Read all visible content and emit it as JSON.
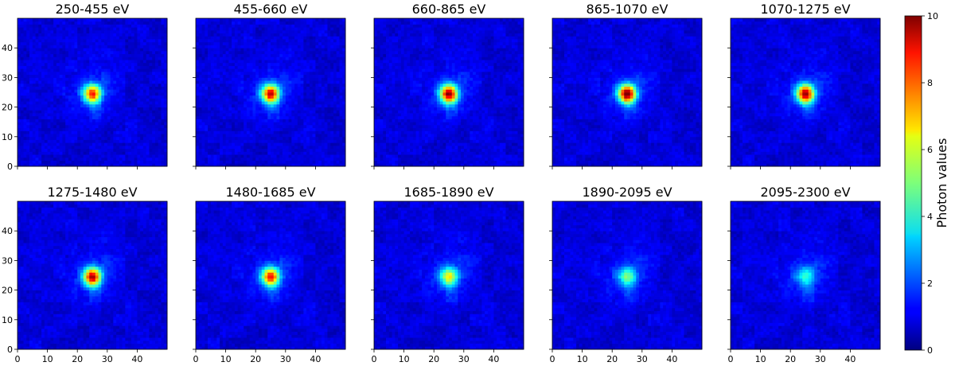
{
  "chart_data": {
    "type": "heatmap",
    "colormap": "jet",
    "grid": false,
    "colorbar": {
      "label": "Photon values",
      "range": [
        0,
        10
      ],
      "ticks": [
        0,
        2,
        4,
        6,
        8,
        10
      ],
      "placement": "right"
    },
    "x_ticks": [
      0,
      10,
      20,
      30,
      40
    ],
    "y_ticks": [
      0,
      10,
      20,
      30,
      40
    ],
    "xlim": [
      0,
      50
    ],
    "ylim": [
      0,
      50
    ],
    "image_size": [
      50,
      50
    ],
    "source_center": [
      25,
      24.5
    ],
    "panels": [
      {
        "title": "250-455 eV",
        "peak_value": 7.4
      },
      {
        "title": "455-660 eV",
        "peak_value": 8.2
      },
      {
        "title": "660-865 eV",
        "peak_value": 8.8
      },
      {
        "title": "865-1070 eV",
        "peak_value": 9.2
      },
      {
        "title": "1070-1275 eV",
        "peak_value": 8.7
      },
      {
        "title": "1275-1480 eV",
        "peak_value": 8.4
      },
      {
        "title": "1480-1685 eV",
        "peak_value": 7.6
      },
      {
        "title": "1685-1890 eV",
        "peak_value": 5.2
      },
      {
        "title": "1890-2095 eV",
        "peak_value": 3.8
      },
      {
        "title": "2095-2300 eV",
        "peak_value": 3.0
      }
    ]
  }
}
